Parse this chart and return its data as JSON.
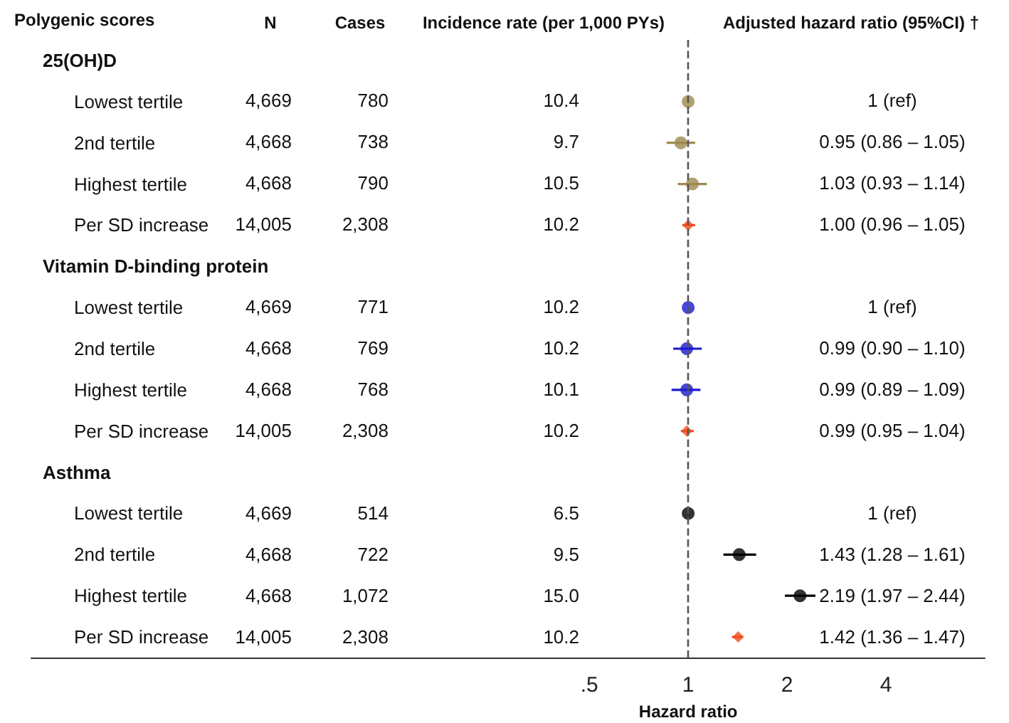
{
  "chart_data": [
    {
      "type": "scatter",
      "orientation": "horizontal",
      "ylabel": "Polygenic scores",
      "xlabel": "Hazard ratio",
      "categories": [
        "25(OH)D",
        "Lowest tertile",
        "2nd tertile",
        "Highest tertile",
        "Per SD increase",
        "Vitamin D-binding protein",
        "Lowest tertile",
        "2nd tertile",
        "Highest tertile",
        "Per SD increase",
        "Asthma",
        "Lowest tertile",
        "2nd tertile",
        "Highest tertile",
        "Per SD increase"
      ],
      "series": [
        {
          "marker": "circle",
          "values": [
            null,
            1,
            0.95,
            1.03,
            null,
            null,
            1,
            0.99,
            0.99,
            null,
            null,
            1,
            1.43,
            2.19,
            null
          ],
          "colors": [
            null,
            "#9c8a4e",
            "#9c8a4e",
            "#9c8a4e",
            null,
            null,
            "#1a1acc",
            "#1a1acc",
            "#1a1acc",
            null,
            null,
            "#000000",
            "#000000",
            "#000000",
            null
          ],
          "errors": [
            null,
            null,
            [
              0.86,
              1.05
            ],
            [
              0.93,
              1.14
            ],
            null,
            null,
            null,
            [
              0.9,
              1.1
            ],
            [
              0.89,
              1.09
            ],
            null,
            null,
            null,
            [
              1.28,
              1.61
            ],
            [
              1.97,
              2.44
            ],
            null
          ]
        },
        {
          "marker": "diamond",
          "color": "#f04e1e",
          "values": [
            null,
            null,
            null,
            null,
            1.0,
            null,
            null,
            null,
            null,
            0.99,
            null,
            null,
            null,
            null,
            1.42
          ],
          "errors": [
            null,
            null,
            null,
            null,
            [
              0.96,
              1.05
            ],
            null,
            null,
            null,
            null,
            [
              0.95,
              1.04
            ],
            null,
            null,
            null,
            null,
            [
              1.36,
              1.47
            ]
          ]
        }
      ],
      "log": "x",
      "xlim": [
        0.01,
        8
      ],
      "xticks": [
        {
          "value": 0.5,
          "label": ".5"
        },
        1,
        2,
        4
      ],
      "ref_lines": [
        {
          "axis": "x",
          "value": 1,
          "line_style": "dashed",
          "color": "#555555"
        }
      ]
    },
    {
      "type": "other",
      "title": "N",
      "value_labels": [
        null,
        "4,669",
        "4,668",
        "4,668",
        "14,005",
        null,
        "4,669",
        "4,668",
        "4,668",
        "14,005",
        null,
        "4,669",
        "4,668",
        "4,668",
        "14,005"
      ]
    },
    {
      "type": "other",
      "title": "Cases",
      "value_labels": [
        null,
        "780",
        "738",
        "790",
        "2,308",
        null,
        "771",
        "769",
        "768",
        "2,308",
        null,
        "514",
        "722",
        "1,072",
        "2,308"
      ]
    },
    {
      "type": "other",
      "title": "Incidence rate (per 1,000 PYs)",
      "value_labels": [
        null,
        "10.4",
        "9.7",
        "10.5",
        "10.2",
        null,
        "10.2",
        "10.2",
        "10.1",
        "10.2",
        null,
        "6.5",
        "9.5",
        "15.0",
        "10.2"
      ]
    },
    {
      "type": "other",
      "title": "Adjusted hazard ratio (95%CI) †",
      "value_labels": [
        null,
        "1 (ref)",
        "0.95 (0.86 – 1.05)",
        "1.03 (0.93 – 1.14)",
        "1.00 (0.96 – 1.05)",
        null,
        "1 (ref)",
        "0.99 (0.90 – 1.10)",
        "0.99 (0.89 – 1.09)",
        "0.99 (0.95 – 1.04)",
        null,
        "1 (ref)",
        "1.43 (1.28 – 1.61)",
        "2.19 (1.97 – 2.44)",
        "1.42 (1.36 – 1.47)"
      ]
    }
  ]
}
